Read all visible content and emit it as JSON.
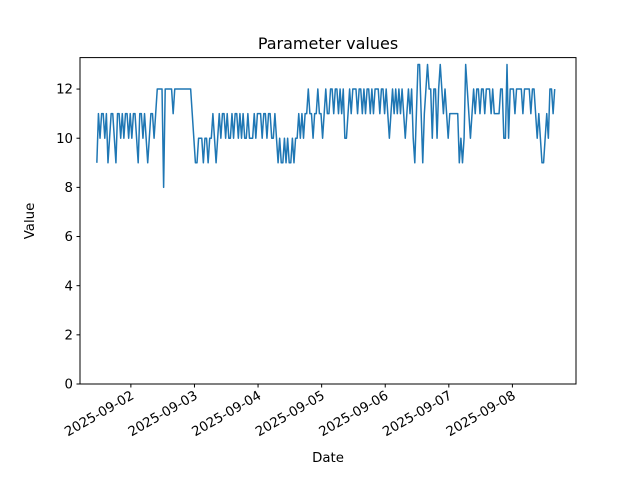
{
  "figure": {
    "background": "#ffffff",
    "kind": "matplotlib-line-figure"
  },
  "chart_data": {
    "type": "line",
    "title": "Parameter values",
    "xlabel": "Date",
    "ylabel": "Value",
    "legend": null,
    "grid": false,
    "line_color": "#1f77b4",
    "text_color": "#000000",
    "x_epoch": "2025-09-01",
    "xlim_days": [
      0.2,
      8.0
    ],
    "ylim": [
      0,
      13.28
    ],
    "y_ticks": [
      0,
      2,
      4,
      6,
      8,
      10,
      12
    ],
    "y_tick_labels": [
      "0",
      "2",
      "4",
      "6",
      "8",
      "10",
      "12"
    ],
    "x_tick_days": [
      1,
      2,
      3,
      4,
      5,
      6,
      7
    ],
    "x_tick_labels": [
      "2025-09-02",
      "2025-09-03",
      "2025-09-04",
      "2025-09-05",
      "2025-09-06",
      "2025-09-07",
      "2025-09-08"
    ],
    "x_tick_rotation_deg": 30,
    "series": [
      {
        "name": "parameter-values",
        "t0_days": 0.465,
        "dt_days": 0.025,
        "values": [
          9,
          11,
          10,
          11,
          11,
          10,
          11,
          9,
          10,
          11,
          11,
          10,
          9,
          11,
          11,
          10,
          11,
          10,
          11,
          11,
          10,
          11,
          10,
          11,
          11,
          10,
          9,
          11,
          11,
          10,
          11,
          10,
          9,
          10,
          11,
          11,
          10,
          11,
          12,
          12,
          12,
          12,
          8,
          12,
          12,
          12,
          12,
          12,
          11,
          12,
          12,
          12,
          12,
          12,
          12,
          12,
          12,
          12,
          12,
          12,
          11,
          10,
          9,
          9,
          10,
          10,
          10,
          9,
          10,
          10,
          9,
          10,
          10,
          11,
          10,
          9,
          10,
          11,
          10,
          11,
          11,
          10,
          11,
          10,
          10,
          11,
          10,
          11,
          11,
          10,
          11,
          10,
          11,
          10,
          10,
          11,
          10,
          10,
          10,
          11,
          10,
          11,
          11,
          11,
          10,
          11,
          11,
          10,
          11,
          11,
          10,
          10,
          11,
          10,
          9,
          10,
          9,
          9,
          10,
          9,
          10,
          9,
          9,
          10,
          9,
          10,
          10,
          11,
          10,
          11,
          10,
          11,
          11,
          12,
          11,
          11,
          10,
          11,
          11,
          12,
          11,
          11,
          10,
          11,
          12,
          11,
          11,
          12,
          12,
          11,
          12,
          12,
          11,
          12,
          11,
          12,
          10,
          10,
          11,
          12,
          11,
          12,
          12,
          12,
          11,
          12,
          12,
          11,
          12,
          11,
          12,
          12,
          11,
          12,
          11,
          12,
          12,
          12,
          11,
          12,
          12,
          11,
          12,
          11,
          10,
          11,
          12,
          11,
          12,
          11,
          12,
          11,
          12,
          11,
          10,
          11,
          12,
          11,
          12,
          10,
          9,
          11,
          13,
          13,
          11,
          9,
          11,
          12,
          13,
          12,
          12,
          10,
          12,
          12,
          10,
          12,
          13,
          12,
          11,
          12,
          11,
          10,
          11,
          11,
          11,
          11,
          11,
          11,
          9,
          10,
          9,
          10,
          13,
          12,
          11,
          10,
          11,
          12,
          11,
          12,
          12,
          11,
          12,
          12,
          11,
          12,
          12,
          12,
          11,
          12,
          11,
          11,
          11,
          11,
          12,
          12,
          10,
          10,
          13,
          10,
          12,
          12,
          12,
          11,
          12,
          12,
          12,
          12,
          11,
          12,
          12,
          12,
          12,
          11,
          12,
          12,
          11,
          10,
          11,
          10,
          9,
          9,
          10,
          11,
          10,
          12,
          12,
          11,
          12
        ]
      }
    ]
  }
}
